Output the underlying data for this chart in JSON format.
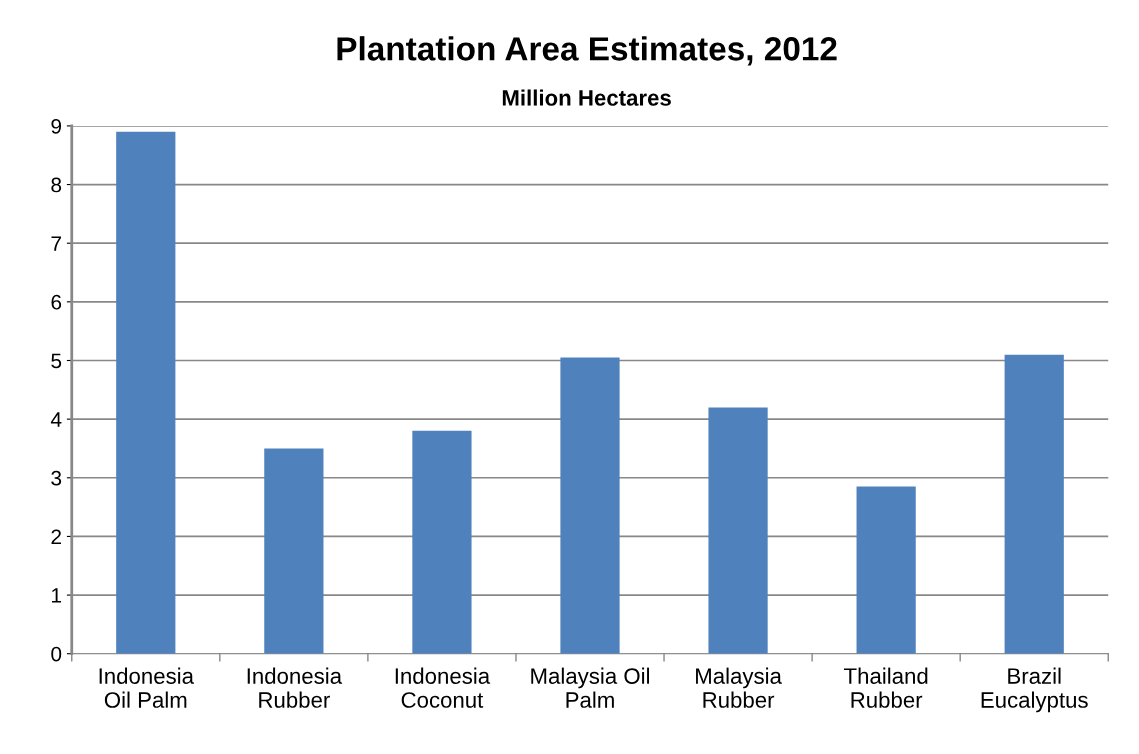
{
  "chart_data": {
    "type": "bar",
    "title": "Plantation Area Estimates, 2012",
    "subtitle": "Million Hectares",
    "categories": [
      "Indonesia\nOil Palm",
      "Indonesia\nRubber",
      "Indonesia\nCoconut",
      "Malaysia Oil\nPalm",
      "Malaysia\nRubber",
      "Thailand\nRubber",
      "Brazil\nEucalyptus"
    ],
    "values": [
      8.9,
      3.5,
      3.8,
      5.05,
      4.2,
      2.85,
      5.1
    ],
    "color": "#4f81bd",
    "ylim": [
      0,
      9
    ],
    "yticks": [
      0,
      1,
      2,
      3,
      4,
      5,
      6,
      7,
      8,
      9
    ],
    "grid": "y",
    "legend": false
  }
}
